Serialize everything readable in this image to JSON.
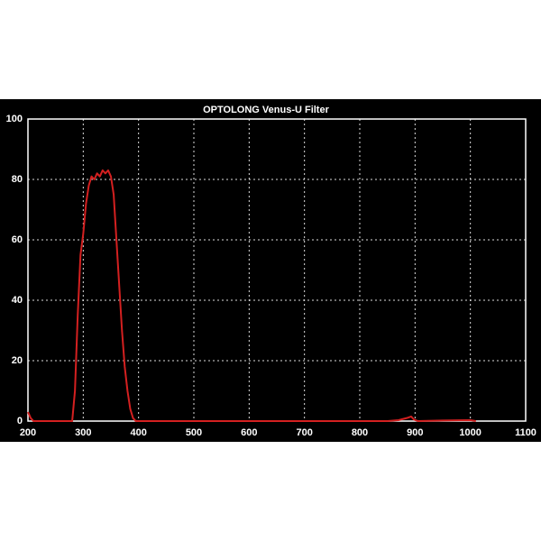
{
  "chart_data": {
    "type": "line",
    "title": "OPTOLONG Venus-U Filter",
    "x": [
      200,
      205,
      210,
      280,
      285,
      290,
      295,
      300,
      305,
      310,
      315,
      320,
      325,
      330,
      335,
      340,
      345,
      350,
      355,
      360,
      365,
      370,
      375,
      380,
      385,
      390,
      395,
      850,
      870,
      885,
      893,
      898,
      905,
      950,
      1000,
      1010
    ],
    "values": [
      3,
      1,
      0,
      0,
      10,
      35,
      55,
      62,
      72,
      78,
      81,
      80,
      82,
      81,
      83,
      82,
      83,
      81,
      75,
      60,
      45,
      30,
      18,
      10,
      4,
      1,
      0,
      0,
      0.3,
      1,
      1.5,
      0.5,
      0,
      0.2,
      0.3,
      0
    ],
    "color": "#d42020",
    "xlim": [
      200,
      1100
    ],
    "ylim": [
      0,
      100
    ],
    "xticks": [
      200,
      300,
      400,
      500,
      600,
      700,
      800,
      900,
      1000,
      1100
    ],
    "yticks": [
      0,
      20,
      40,
      60,
      80,
      100
    ],
    "grid": true
  }
}
